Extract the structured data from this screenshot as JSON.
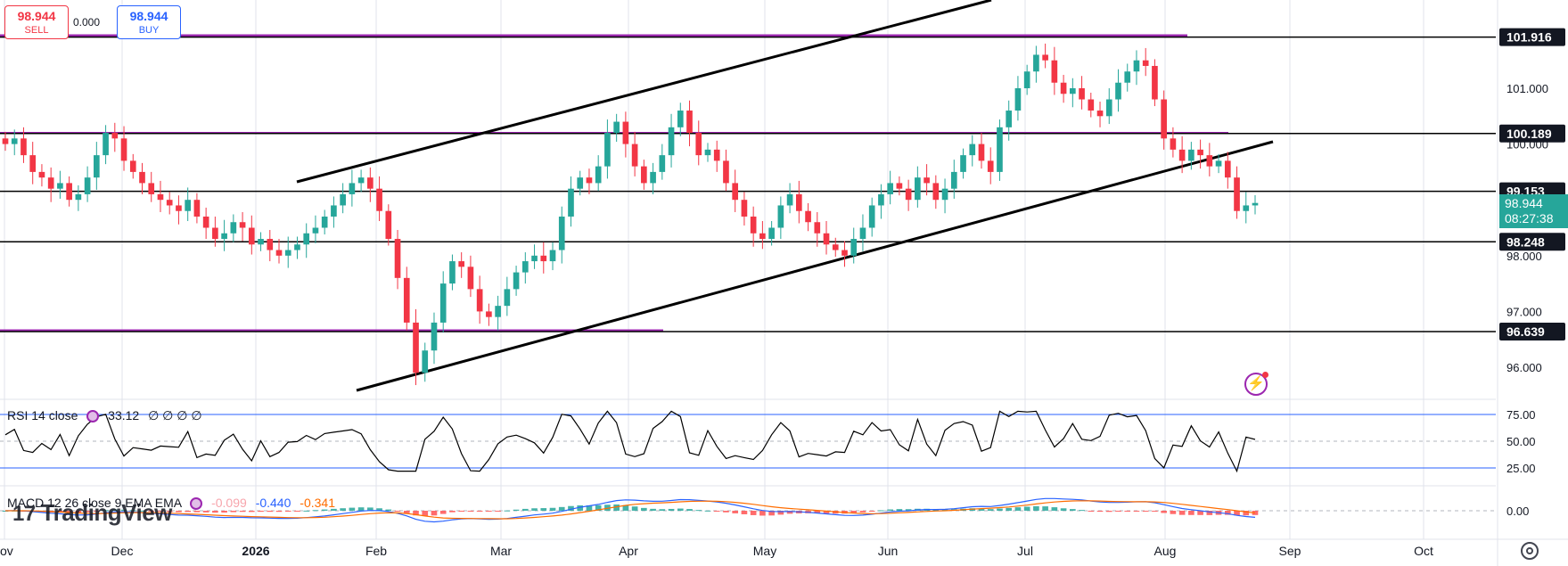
{
  "trade": {
    "sell_price": "98.944",
    "sell_label": "SELL",
    "buy_price": "98.944",
    "buy_label": "BUY",
    "spread": "0.000"
  },
  "price_axis": {
    "ticks": [
      {
        "label": "101.000",
        "value": 101.0
      },
      {
        "label": "100.000",
        "value": 100.0
      },
      {
        "label": "98.000",
        "value": 98.0
      },
      {
        "label": "97.000",
        "value": 97.0
      },
      {
        "label": "96.000",
        "value": 96.0
      }
    ],
    "level_tags": [
      {
        "label": "101.916",
        "value": 101.916
      },
      {
        "label": "100.189",
        "value": 100.189
      },
      {
        "label": "99.153",
        "value": 99.153
      },
      {
        "label": "98.248",
        "value": 98.248
      },
      {
        "label": "96.639",
        "value": 96.639
      }
    ],
    "current_price": "98.944",
    "countdown": "08:27:38"
  },
  "rsi": {
    "legend_label": "RSI 14 close",
    "value": "33.12",
    "extra": "∅ ∅ ∅ ∅",
    "ticks": [
      "75.00",
      "50.00",
      "25.00"
    ]
  },
  "macd": {
    "legend_label": "MACD 12 26 close 9 EMA EMA",
    "hist_value": "-0.099",
    "macd_value": "-0.440",
    "signal_value": "-0.341",
    "ticks": [
      "0.00"
    ]
  },
  "time_axis": [
    "ov",
    "Dec",
    "2026",
    "Feb",
    "Mar",
    "Apr",
    "May",
    "Jun",
    "Jul",
    "Aug",
    "Sep",
    "Oct"
  ],
  "logo_text": "TradingView",
  "colors": {
    "up": "#26a69a",
    "down": "#f23645",
    "level_line": "#000000",
    "magenta_line": "#9c27b0",
    "rsi_band": "#2962ff",
    "macd_line": "#2962ff",
    "signal_line": "#ff6d00"
  },
  "chart_data": {
    "type": "candlestick",
    "horizontal_levels": [
      101.916,
      100.189,
      99.153,
      98.248,
      96.639
    ],
    "closes": [
      100.0,
      100.1,
      99.8,
      99.5,
      99.4,
      99.2,
      99.3,
      99.0,
      99.1,
      99.4,
      99.8,
      100.2,
      100.1,
      99.7,
      99.5,
      99.3,
      99.1,
      99.0,
      98.9,
      98.8,
      99.0,
      98.7,
      98.5,
      98.3,
      98.4,
      98.6,
      98.5,
      98.2,
      98.3,
      98.1,
      98.0,
      98.1,
      98.2,
      98.4,
      98.5,
      98.7,
      98.9,
      99.1,
      99.3,
      99.4,
      99.2,
      98.8,
      98.3,
      97.6,
      96.8,
      95.9,
      96.3,
      96.8,
      97.5,
      97.9,
      97.8,
      97.4,
      97.0,
      96.9,
      97.1,
      97.4,
      97.7,
      97.9,
      98.0,
      97.9,
      98.1,
      98.7,
      99.2,
      99.4,
      99.3,
      99.6,
      100.2,
      100.4,
      100.0,
      99.6,
      99.3,
      99.5,
      99.8,
      100.3,
      100.6,
      100.2,
      99.8,
      99.9,
      99.7,
      99.3,
      99.0,
      98.7,
      98.4,
      98.3,
      98.5,
      98.9,
      99.1,
      98.8,
      98.6,
      98.4,
      98.2,
      98.1,
      98.0,
      98.3,
      98.5,
      98.9,
      99.1,
      99.3,
      99.2,
      99.0,
      99.4,
      99.3,
      99.0,
      99.2,
      99.5,
      99.8,
      100.0,
      99.7,
      99.5,
      100.3,
      100.6,
      101.0,
      101.3,
      101.6,
      101.5,
      101.1,
      100.9,
      101.0,
      100.8,
      100.6,
      100.5,
      100.8,
      101.1,
      101.3,
      101.5,
      101.4,
      100.8,
      100.1,
      99.9,
      99.7,
      99.9,
      99.8,
      99.6,
      99.7,
      99.4,
      98.8,
      98.9,
      98.944
    ]
  }
}
